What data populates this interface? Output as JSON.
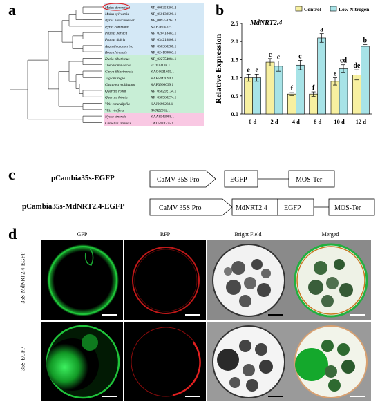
{
  "panel_a": {
    "letter": "a",
    "species": [
      {
        "name": "Malus domestica",
        "accession": "XP_008358201.2",
        "group": "blue",
        "highlight": true
      },
      {
        "name": "Malus sylvestris",
        "accession": "XP_050139590.1",
        "group": "blue"
      },
      {
        "name": "Pyrus bretschneideri",
        "accession": "XP_009358263.2",
        "group": "blue"
      },
      {
        "name": "Pyrus communis",
        "accession": "KAB2614705.1",
        "group": "blue"
      },
      {
        "name": "Prunus persica",
        "accession": "XP_020418483.1",
        "group": "blue"
      },
      {
        "name": "Prunus dulcis",
        "accession": "XP_034218808.1",
        "group": "blue"
      },
      {
        "name": "Argentina anserina",
        "accession": "XP_050368288.1",
        "group": "blue"
      },
      {
        "name": "Rosa chinensis",
        "accession": "XP_024189863.1",
        "group": "blue"
      },
      {
        "name": "Durio zibethinus",
        "accession": "XP_022754084.1",
        "group": "green"
      },
      {
        "name": "Theobroma cacao",
        "accession": "EOY33138.1",
        "group": "green"
      },
      {
        "name": "Carya illinoinensis",
        "accession": "KAG6631659.1",
        "group": "green"
      },
      {
        "name": "Juglans regia",
        "accession": "KAF5447094.1",
        "group": "green"
      },
      {
        "name": "Castanea mollissima",
        "accession": "KAF3966039.1",
        "group": "green"
      },
      {
        "name": "Quercus robur",
        "accession": "XP_050292134.1",
        "group": "green"
      },
      {
        "name": "Quercus lobata",
        "accession": "XP_030968274.1",
        "group": "green"
      },
      {
        "name": "Vitis rotundifolia",
        "accession": "KAJ9698238.1",
        "group": "green"
      },
      {
        "name": "Vitis vinifera",
        "accession": "RVX22962.1",
        "group": "green"
      },
      {
        "name": "Nyssa sinensis",
        "accession": "KAA8543988.1",
        "group": "pink"
      },
      {
        "name": "Camellia sinensis",
        "accession": "CAL5424275.1",
        "group": "pink"
      }
    ],
    "colors": {
      "blue": "#d4e8f6",
      "green": "#c8eed6",
      "pink": "#f9c8e3",
      "highlight": "#d9262b"
    }
  },
  "panel_b": {
    "letter": "b"
  },
  "chart_data": {
    "type": "bar",
    "title": "MdNRT2.4",
    "ylabel": "Relative Expression",
    "categories": [
      "0 d",
      "2 d",
      "4 d",
      "8 d",
      "10 d",
      "12 d"
    ],
    "ylim": [
      0,
      2.5
    ],
    "yticks": [
      "0.0",
      "0.5",
      "1.0",
      "1.5",
      "2.0",
      "2.5"
    ],
    "series": [
      {
        "name": "Control",
        "color": "#f7f0a0",
        "values": [
          1.0,
          1.43,
          0.55,
          0.55,
          0.9,
          1.08
        ],
        "errors": [
          0.1,
          0.1,
          0.04,
          0.06,
          0.1,
          0.14
        ],
        "labels": [
          "e",
          "c",
          "f",
          "f",
          "e",
          "de"
        ]
      },
      {
        "name": "Low Nitrogen",
        "color": "#a7e3e7",
        "values": [
          1.0,
          1.32,
          1.35,
          2.1,
          1.25,
          1.87
        ],
        "errors": [
          0.1,
          0.14,
          0.13,
          0.12,
          0.11,
          0.05
        ],
        "labels": [
          "e",
          "c",
          "c",
          "a",
          "cd",
          "b"
        ]
      }
    ],
    "legend_position": "top"
  },
  "panel_c": {
    "letter": "c",
    "constructs": [
      {
        "name": "pCambia35s-EGFP",
        "parts": [
          "CaMV 35S Pro",
          "EGFP",
          "MOS-Ter"
        ]
      },
      {
        "name": "pCambia35s-MdNRT2.4-EGFP",
        "parts": [
          "CaMV 35S Pro",
          "MdNRT2.4",
          "EGFP",
          "MOS-Ter"
        ]
      }
    ]
  },
  "panel_d": {
    "letter": "d",
    "columns": [
      "GFP",
      "RFP",
      "Bright Field",
      "Merged"
    ],
    "rows": [
      "35S-MdNRT2.4-EGFP",
      "35S-EGFP"
    ]
  }
}
